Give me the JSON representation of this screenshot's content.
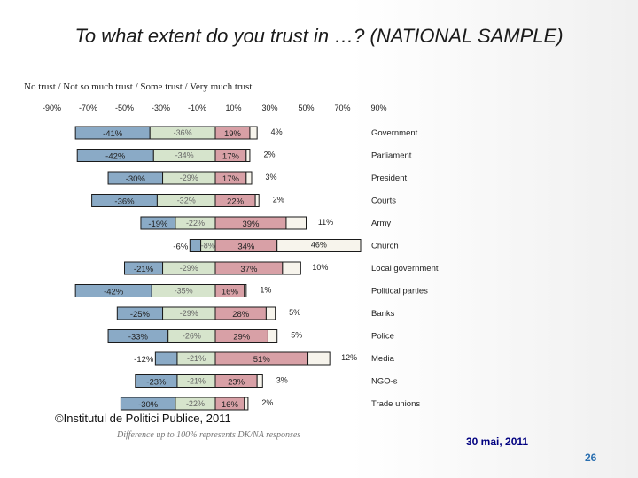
{
  "slide": {
    "title": "To what extent do you trust in …? (NATIONAL SAMPLE)",
    "legend_text": "No trust / Not so much trust / Some trust / Very much trust",
    "copyright": "©Institutul de Politici Publice, 2011",
    "note": "Difference up to 100% represents DK/NA responses",
    "date": "30 mai, 2011",
    "page_number": "26"
  },
  "chart_data": {
    "type": "bar",
    "subtype": "diverging-stacked-horizontal",
    "title": "To what extent do you trust in …? (NATIONAL SAMPLE)",
    "xlim": [
      -90,
      90
    ],
    "xticks": [
      -90,
      -70,
      -50,
      -30,
      -10,
      10,
      30,
      50,
      70,
      90
    ],
    "xtick_labels": [
      "-90%",
      "-70%",
      "-50%",
      "-30%",
      "-10%",
      "10%",
      "30%",
      "50%",
      "70%",
      "90%"
    ],
    "categories": [
      "Government",
      "Parliament",
      "President",
      "Courts",
      "Army",
      "Church",
      "Local government",
      "Political parties",
      "Banks",
      "Police",
      "Media",
      "NGO-s",
      "Trade unions"
    ],
    "series": [
      {
        "name": "No trust",
        "color": "#8aaac6",
        "values": [
          -41,
          -42,
          -30,
          -36,
          -19,
          -6,
          -21,
          -42,
          -25,
          -33,
          -12,
          -23,
          -30
        ]
      },
      {
        "name": "Not so much trust",
        "color": "#d6e4cc",
        "values": [
          -36,
          -34,
          -29,
          -32,
          -22,
          -8,
          -29,
          -35,
          -29,
          -26,
          -21,
          -21,
          -22
        ]
      },
      {
        "name": "Some trust",
        "color": "#d8a0a6",
        "values": [
          19,
          17,
          17,
          22,
          39,
          34,
          37,
          16,
          28,
          29,
          51,
          23,
          16
        ]
      },
      {
        "name": "Very much trust",
        "color": "#f7f4ec",
        "values": [
          4,
          2,
          3,
          2,
          11,
          46,
          10,
          1,
          5,
          5,
          12,
          3,
          2
        ]
      }
    ],
    "value_labels": {
      "no_trust": [
        "-41%",
        "-42%",
        "-30%",
        "-36%",
        "-19%",
        "-6%",
        "-21%",
        "-42%",
        "-25%",
        "-33%",
        "-12%",
        "-23%",
        "-30%"
      ],
      "not_so_much": [
        "-36%",
        "-34%",
        "-29%",
        "-32%",
        "-22%",
        "-8%",
        "-29%",
        "-35%",
        "-29%",
        "-26%",
        "-21%",
        "-21%",
        "-22%"
      ],
      "some": [
        "19%",
        "17%",
        "17%",
        "22%",
        "39%",
        "34%",
        "37%",
        "16%",
        "28%",
        "29%",
        "51%",
        "23%",
        "16%"
      ],
      "very_much": [
        "4%",
        "2%",
        "3%",
        "2%",
        "11%",
        "46%",
        "10%",
        "1%",
        "5%",
        "5%",
        "12%",
        "3%",
        "2%"
      ]
    },
    "legend": "none"
  }
}
